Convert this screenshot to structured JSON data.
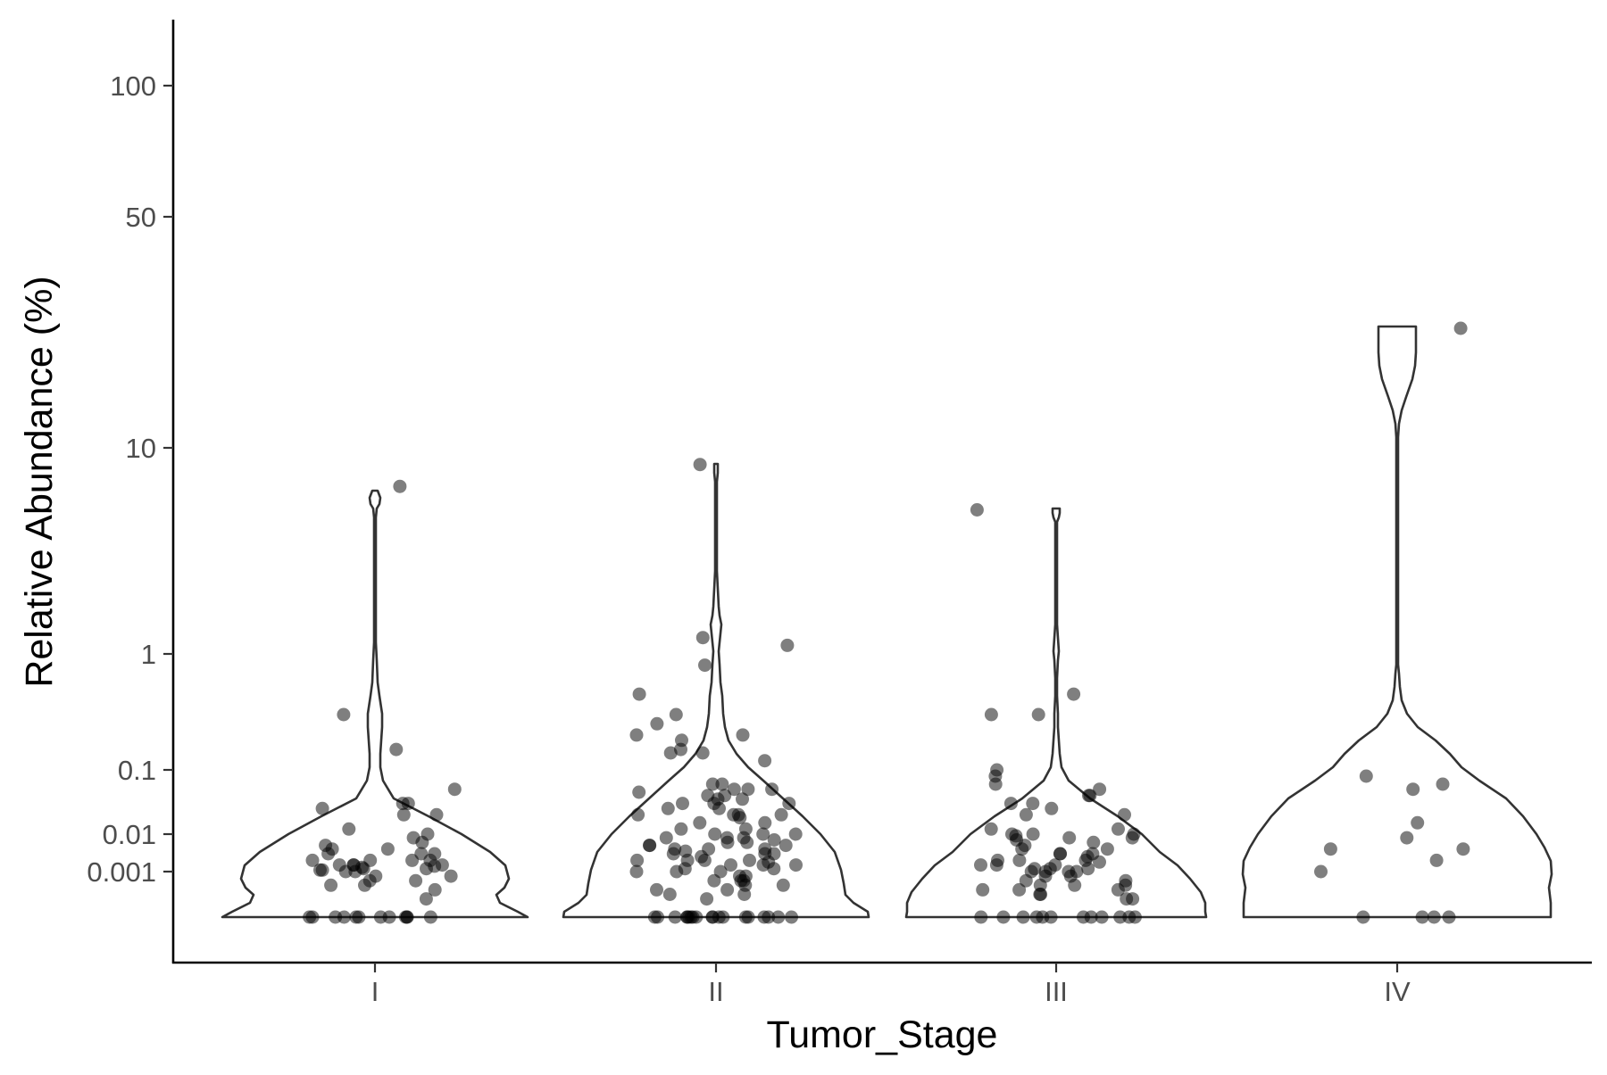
{
  "chart_data": {
    "type": "violin",
    "xlabel": "Tumor_Stage",
    "ylabel": "Relative Abundance (%)",
    "y_scale": "log-like",
    "y_ticks": [
      {
        "value": 0.001,
        "label": "0.001"
      },
      {
        "value": 0.01,
        "label": "0.01"
      },
      {
        "value": 0.1,
        "label": "0.1"
      },
      {
        "value": 1,
        "label": "1"
      },
      {
        "value": 10,
        "label": "10"
      },
      {
        "value": 50,
        "label": "50"
      },
      {
        "value": 100,
        "label": "100"
      }
    ],
    "ylim": [
      0.0001,
      150
    ],
    "grid": false,
    "legend": "none",
    "categories": [
      "I",
      "II",
      "III",
      "IV"
    ],
    "groups": [
      {
        "stage": "I",
        "points": [
          6.5,
          0.3,
          0.15,
          0.05,
          0.02,
          0.03,
          0.025,
          0.02,
          0.03,
          0.01,
          0.008,
          0.012,
          0.006,
          0.005,
          0.004,
          0.004,
          0.003,
          0.003,
          0.003,
          0.002,
          0.002,
          0.002,
          0.002,
          0.0015,
          0.0015,
          0.0015,
          0.0015,
          0.0014,
          0.0013,
          0.0012,
          0.0012,
          0.0011,
          0.0011,
          0.001,
          0.001,
          0.0009,
          0.0009,
          0.0008,
          0.0008,
          0.0007,
          0.0007,
          0.0006,
          0.0004,
          0,
          0,
          0,
          0,
          0,
          0,
          0,
          0,
          0,
          0,
          0,
          0
        ],
        "violin_max": 6.5
      },
      {
        "stage": "II",
        "points": [
          8.3,
          1.2,
          1.1,
          0.8,
          0.45,
          0.3,
          0.25,
          0.2,
          0.2,
          0.18,
          0.15,
          0.14,
          0.14,
          0.12,
          0.06,
          0.06,
          0.05,
          0.05,
          0.05,
          0.045,
          0.04,
          0.04,
          0.035,
          0.035,
          0.03,
          0.03,
          0.03,
          0.025,
          0.025,
          0.02,
          0.02,
          0.02,
          0.02,
          0.018,
          0.015,
          0.015,
          0.012,
          0.012,
          0.01,
          0.01,
          0.01,
          0.008,
          0.008,
          0.008,
          0.007,
          0.006,
          0.006,
          0.005,
          0.005,
          0.005,
          0.004,
          0.004,
          0.004,
          0.0035,
          0.003,
          0.003,
          0.003,
          0.0025,
          0.002,
          0.002,
          0.002,
          0.002,
          0.0018,
          0.0015,
          0.0015,
          0.0015,
          0.0012,
          0.0012,
          0.001,
          0.001,
          0.001,
          0.0009,
          0.0009,
          0.0008,
          0.0008,
          0.0008,
          0.0007,
          0.0007,
          0.0006,
          0.0006,
          0.0005,
          0.0005,
          0.0004,
          0,
          0,
          0,
          0,
          0,
          0,
          0,
          0,
          0,
          0,
          0,
          0,
          0,
          0,
          0,
          0,
          0,
          0,
          0
        ],
        "violin_max": 8.3
      },
      {
        "stage": "III",
        "points": [
          5.0,
          0.45,
          0.3,
          0.3,
          0.1,
          0.08,
          0.06,
          0.05,
          0.04,
          0.04,
          0.03,
          0.03,
          0.025,
          0.02,
          0.02,
          0.012,
          0.012,
          0.01,
          0.01,
          0.01,
          0.009,
          0.008,
          0.008,
          0.007,
          0.006,
          0.005,
          0.004,
          0.004,
          0.003,
          0.003,
          0.003,
          0.0025,
          0.002,
          0.002,
          0.002,
          0.0018,
          0.0015,
          0.0015,
          0.0015,
          0.0012,
          0.0012,
          0.0012,
          0.001,
          0.001,
          0.001,
          0.001,
          0.0009,
          0.0009,
          0.0008,
          0.0008,
          0.0007,
          0.0007,
          0.0007,
          0.0006,
          0.0006,
          0.0006,
          0.0005,
          0.0005,
          0.0004,
          0.0004,
          0,
          0,
          0,
          0,
          0,
          0,
          0,
          0,
          0,
          0,
          0,
          0
        ],
        "violin_max": 5.0
      },
      {
        "stage": "IV",
        "points": [
          23,
          0.08,
          0.06,
          0.05,
          0.015,
          0.008,
          0.004,
          0.004,
          0.002,
          0.001,
          0,
          0,
          0,
          0
        ],
        "violin_max": 23
      }
    ]
  }
}
